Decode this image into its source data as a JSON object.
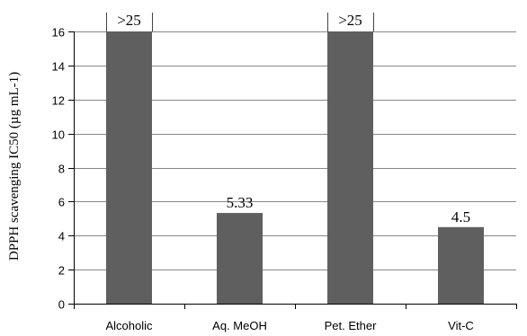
{
  "chart_data": {
    "type": "bar",
    "title": "",
    "xlabel": "",
    "ylabel": "DPPH scavenging IC50 (µg mL-1)",
    "categories": [
      "Alcoholic",
      "Aq. MeOH",
      "Pet. Ether",
      "Vit-C"
    ],
    "values": [
      16,
      5.33,
      16,
      4.5
    ],
    "data_labels": [
      ">25",
      "5.33",
      ">25",
      "4.5"
    ],
    "ylim": [
      0,
      16
    ],
    "yticks": [
      0,
      2,
      4,
      6,
      8,
      10,
      12,
      14,
      16
    ],
    "grid": true,
    "legend": "none",
    "colors": {
      "bar": "#5f5f5f",
      "gridline": "#888888",
      "axis": "#000000"
    }
  }
}
